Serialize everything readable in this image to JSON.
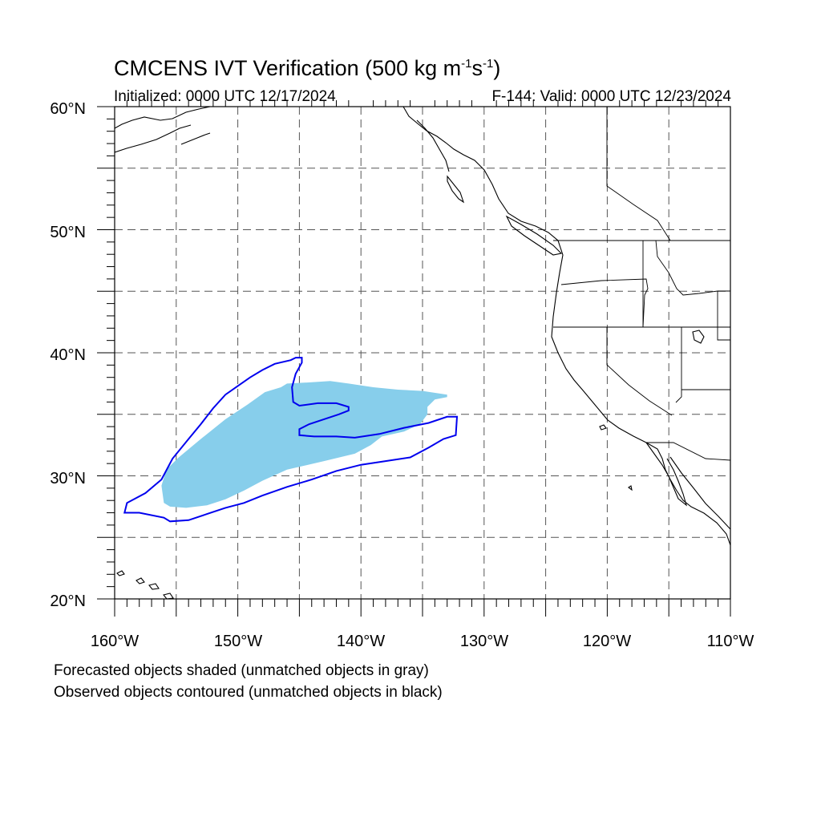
{
  "title": {
    "prefix": "CMCENS IVT Verification (500 kg m",
    "sup1": "-1",
    "mid": "s",
    "sup2": "-1",
    "suffix": ")"
  },
  "initialized": "Initialized: 0000 UTC 12/17/2024",
  "valid": "F-144: Valid: 0000 UTC 12/23/2024",
  "notes": [
    "Forecasted objects shaded (unmatched objects in gray)",
    "Observed objects contoured (unmatched objects in black)"
  ],
  "axes": {
    "lat_labels": [
      "60°N",
      "50°N",
      "40°N",
      "30°N",
      "20°N"
    ],
    "lon_labels": [
      "160°W",
      "150°W",
      "140°W",
      "130°W",
      "120°W",
      "110°W"
    ]
  },
  "colors": {
    "forecast_fill": "#87ceeb",
    "observed_contour": "#0000ee",
    "coast": "#000000",
    "grid": "#555555"
  },
  "map_data": {
    "lon_range": [
      -160,
      -110
    ],
    "lat_range": [
      20,
      60
    ],
    "grid_step_deg": 5,
    "forecast_object_lonlat": [
      [
        -146,
        37.5
      ],
      [
        -144,
        37.6
      ],
      [
        -142.5,
        37.7
      ],
      [
        -141,
        37.5
      ],
      [
        -139,
        37.2
      ],
      [
        -137,
        37
      ],
      [
        -135,
        36.9
      ],
      [
        -133,
        36.6
      ],
      [
        -133,
        36.4
      ],
      [
        -134,
        36.2
      ],
      [
        -134.6,
        35.6
      ],
      [
        -134.6,
        35
      ],
      [
        -135.2,
        34.2
      ],
      [
        -136.5,
        33.6
      ],
      [
        -138.3,
        33.2
      ],
      [
        -139.2,
        32.5
      ],
      [
        -140.5,
        31.8
      ],
      [
        -143,
        31.2
      ],
      [
        -146,
        30.5
      ],
      [
        -148,
        29.6
      ],
      [
        -149.5,
        28.8
      ],
      [
        -151,
        28.1
      ],
      [
        -152.5,
        27.6
      ],
      [
        -154.2,
        27.4
      ],
      [
        -155.5,
        27.5
      ],
      [
        -156,
        27.8
      ],
      [
        -156.2,
        29.2
      ],
      [
        -155.8,
        30.5
      ],
      [
        -154.8,
        31.5
      ],
      [
        -153,
        33
      ],
      [
        -151,
        34.6
      ],
      [
        -149.2,
        35.8
      ],
      [
        -147.8,
        36.8
      ],
      [
        -146.5,
        37.2
      ]
    ],
    "observed_object_lonlat": [
      [
        -145.3,
        39.6
      ],
      [
        -145.7,
        39.4
      ],
      [
        -147,
        39.1
      ],
      [
        -148,
        38.6
      ],
      [
        -149,
        38
      ],
      [
        -150,
        37.3
      ],
      [
        -151,
        36.6
      ],
      [
        -152,
        35.5
      ],
      [
        -153,
        34.2
      ],
      [
        -154,
        33
      ],
      [
        -155.3,
        31.4
      ],
      [
        -156.2,
        29.7
      ],
      [
        -157.5,
        28.6
      ],
      [
        -159,
        27.8
      ],
      [
        -159.2,
        27
      ],
      [
        -158,
        27
      ],
      [
        -156,
        26.6
      ],
      [
        -155.5,
        26.3
      ],
      [
        -154,
        26.4
      ],
      [
        -152.5,
        26.9
      ],
      [
        -151,
        27.4
      ],
      [
        -149.5,
        27.8
      ],
      [
        -148,
        28.4
      ],
      [
        -146,
        29.1
      ],
      [
        -144,
        29.7
      ],
      [
        -142,
        30.4
      ],
      [
        -140,
        30.9
      ],
      [
        -138,
        31.2
      ],
      [
        -136,
        31.5
      ],
      [
        -134.5,
        32.3
      ],
      [
        -133.3,
        33
      ],
      [
        -132.3,
        33.3
      ],
      [
        -132.2,
        34.8
      ],
      [
        -133,
        34.8
      ],
      [
        -134.5,
        34.3
      ],
      [
        -136.5,
        33.9
      ],
      [
        -138.5,
        33.4
      ],
      [
        -140.5,
        33.1
      ],
      [
        -142,
        33.2
      ],
      [
        -143.8,
        33.2
      ],
      [
        -145,
        33.3
      ],
      [
        -145,
        33.8
      ],
      [
        -144.2,
        34.2
      ],
      [
        -143,
        34.6
      ],
      [
        -141.8,
        35
      ],
      [
        -141,
        35.3
      ],
      [
        -141,
        35.6
      ],
      [
        -142,
        35.9
      ],
      [
        -143.5,
        35.9
      ],
      [
        -145,
        35.7
      ],
      [
        -145.5,
        36
      ],
      [
        -145.6,
        37.2
      ],
      [
        -145.3,
        38.3
      ],
      [
        -144.8,
        39.2
      ],
      [
        -144.8,
        39.6
      ]
    ]
  }
}
